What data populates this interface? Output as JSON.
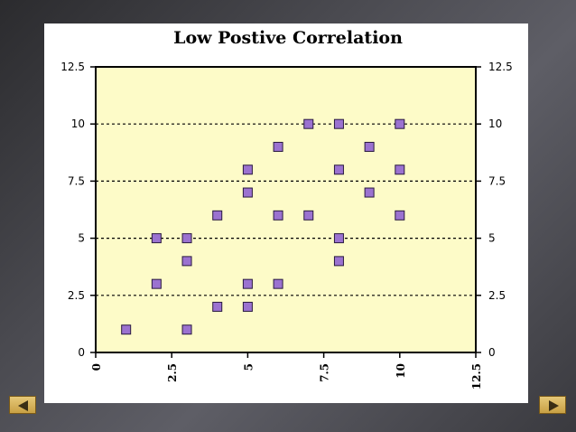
{
  "slide": {
    "prev_icon": "triangle-left-icon",
    "next_icon": "triangle-right-icon",
    "nav_color": "#d8b45a"
  },
  "chart_data": {
    "type": "scatter",
    "title": "Low Postive Correlation",
    "xlabel": "",
    "ylabel": "",
    "xlim": [
      0,
      12.5
    ],
    "ylim": [
      0,
      12.5
    ],
    "x_ticks": [
      "0",
      "2.5",
      "5",
      "7.5",
      "10",
      "12.5"
    ],
    "y_ticks": [
      "0",
      "2.5",
      "5",
      "7.5",
      "10",
      "12.5"
    ],
    "grid": "dashed horizontal lines at 2.5, 5, 7.5, 10",
    "plot_background": "#fdfbc8",
    "marker_color": "#9b72d0",
    "marker_shape": "square",
    "series": [
      {
        "points": [
          [
            1,
            1
          ],
          [
            2,
            3
          ],
          [
            2,
            5
          ],
          [
            3,
            1
          ],
          [
            3,
            4
          ],
          [
            3,
            5
          ],
          [
            4,
            2
          ],
          [
            4,
            6
          ],
          [
            5,
            2
          ],
          [
            5,
            3
          ],
          [
            5,
            7
          ],
          [
            5,
            8
          ],
          [
            6,
            3
          ],
          [
            6,
            6
          ],
          [
            6,
            9
          ],
          [
            7,
            6
          ],
          [
            7,
            10
          ],
          [
            8,
            4
          ],
          [
            8,
            5
          ],
          [
            8,
            8
          ],
          [
            8,
            10
          ],
          [
            9,
            7
          ],
          [
            9,
            9
          ],
          [
            10,
            6
          ],
          [
            10,
            8
          ],
          [
            10,
            10
          ]
        ]
      }
    ]
  }
}
